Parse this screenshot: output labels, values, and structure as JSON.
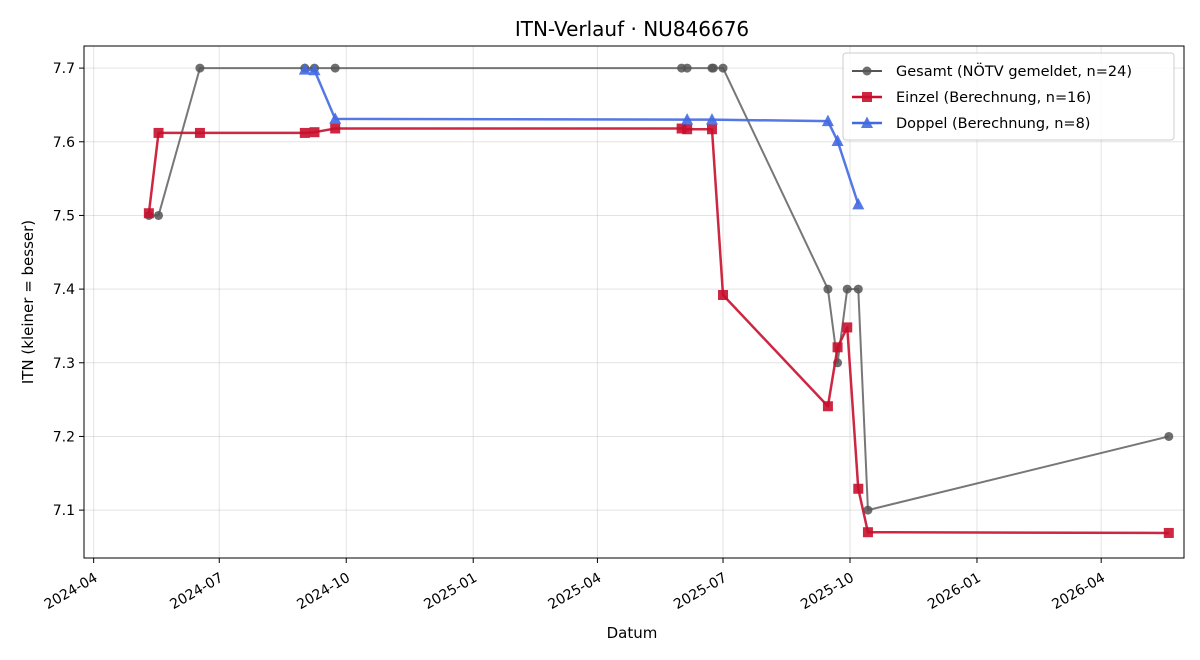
{
  "chart_data": {
    "type": "line",
    "title": "ITN-Verlauf · NU846676",
    "xlabel": "Datum",
    "ylabel": "ITN  (kleiner = besser)",
    "x_axis_type": "date",
    "xlim": [
      "2024-03-25",
      "2026-05-31"
    ],
    "ylim": [
      7.035,
      7.73
    ],
    "x_ticks": [
      "2024-04-01",
      "2024-07-01",
      "2024-10-01",
      "2025-01-01",
      "2025-04-01",
      "2025-07-01",
      "2025-10-01",
      "2026-01-01",
      "2026-04-01"
    ],
    "x_tick_labels": [
      "2024-04",
      "2024-07",
      "2024-10",
      "2025-01",
      "2025-04",
      "2025-07",
      "2025-10",
      "2026-01",
      "2026-04"
    ],
    "y_ticks": [
      7.1,
      7.2,
      7.3,
      7.4,
      7.5,
      7.6,
      7.7
    ],
    "y_tick_labels": [
      "7.1",
      "7.2",
      "7.3",
      "7.4",
      "7.5",
      "7.6",
      "7.7"
    ],
    "grid": true,
    "legend_position": "top-right",
    "series": [
      {
        "name": "Gesamt (NÖTV gemeldet, n=24)",
        "color": "#555555",
        "marker": "circle",
        "points": [
          {
            "x": "2024-05-11",
            "y": 7.5
          },
          {
            "x": "2024-05-18",
            "y": 7.5
          },
          {
            "x": "2024-06-17",
            "y": 7.7
          },
          {
            "x": "2024-09-01",
            "y": 7.7
          },
          {
            "x": "2024-09-08",
            "y": 7.7
          },
          {
            "x": "2024-09-23",
            "y": 7.7
          },
          {
            "x": "2025-06-01",
            "y": 7.7
          },
          {
            "x": "2025-06-05",
            "y": 7.7
          },
          {
            "x": "2025-06-23",
            "y": 7.7
          },
          {
            "x": "2025-06-24",
            "y": 7.7
          },
          {
            "x": "2025-07-01",
            "y": 7.7
          },
          {
            "x": "2025-09-15",
            "y": 7.4
          },
          {
            "x": "2025-09-22",
            "y": 7.3
          },
          {
            "x": "2025-09-29",
            "y": 7.4
          },
          {
            "x": "2025-10-07",
            "y": 7.4
          },
          {
            "x": "2025-10-14",
            "y": 7.1
          },
          {
            "x": "2026-05-20",
            "y": 7.2
          }
        ]
      },
      {
        "name": "Einzel (Berechnung, n=16)",
        "color": "#c8102e",
        "marker": "square",
        "points": [
          {
            "x": "2024-05-11",
            "y": 7.503
          },
          {
            "x": "2024-05-18",
            "y": 7.612
          },
          {
            "x": "2024-06-17",
            "y": 7.612
          },
          {
            "x": "2024-09-01",
            "y": 7.612
          },
          {
            "x": "2024-09-08",
            "y": 7.613
          },
          {
            "x": "2024-09-23",
            "y": 7.618
          },
          {
            "x": "2025-06-01",
            "y": 7.618
          },
          {
            "x": "2025-06-05",
            "y": 7.617
          },
          {
            "x": "2025-06-23",
            "y": 7.617
          },
          {
            "x": "2025-07-01",
            "y": 7.392
          },
          {
            "x": "2025-09-15",
            "y": 7.241
          },
          {
            "x": "2025-09-22",
            "y": 7.321
          },
          {
            "x": "2025-09-29",
            "y": 7.348
          },
          {
            "x": "2025-10-07",
            "y": 7.129
          },
          {
            "x": "2025-10-14",
            "y": 7.07
          },
          {
            "x": "2026-05-20",
            "y": 7.069
          }
        ]
      },
      {
        "name": "Doppel (Berechnung, n=8)",
        "color": "#4169e1",
        "marker": "triangle",
        "points": [
          {
            "x": "2024-09-01",
            "y": 7.698
          },
          {
            "x": "2024-09-08",
            "y": 7.697
          },
          {
            "x": "2024-09-23",
            "y": 7.631
          },
          {
            "x": "2025-06-05",
            "y": 7.63
          },
          {
            "x": "2025-06-23",
            "y": 7.63
          },
          {
            "x": "2025-09-15",
            "y": 7.628
          },
          {
            "x": "2025-09-22",
            "y": 7.601
          },
          {
            "x": "2025-10-07",
            "y": 7.515
          }
        ]
      }
    ]
  }
}
